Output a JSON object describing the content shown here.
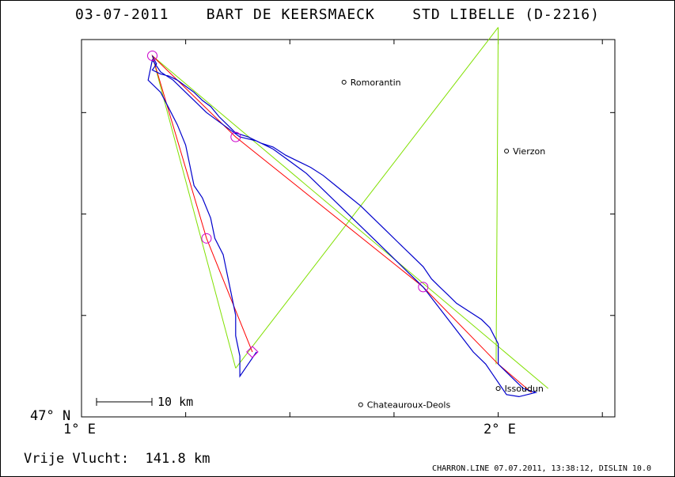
{
  "header": {
    "date": "03-07-2011",
    "pilot": "BART DE KEERSMAECK",
    "glider": "STD LIBELLE (D-2216)"
  },
  "axes": {
    "y_label": "47° N",
    "x_ticks": [
      {
        "lon": 1.0,
        "label": "1° E"
      },
      {
        "lon": 2.0,
        "label": "2° E"
      }
    ],
    "lon_range": [
      1.0,
      2.28
    ],
    "lat_range": [
      47.0,
      47.93
    ]
  },
  "places": [
    {
      "name": "Romorantin",
      "lon": 1.63,
      "lat": 47.825
    },
    {
      "name": "Vierzon",
      "lon": 2.02,
      "lat": 47.655
    },
    {
      "name": "Issoudun",
      "lon": 2.0,
      "lat": 47.07
    },
    {
      "name": "Chateauroux-Deols",
      "lon": 1.67,
      "lat": 47.03
    }
  ],
  "scale_bar": {
    "label": "10 km"
  },
  "footer": {
    "distance_label": "Vrije Vlucht:",
    "distance_value": "141.8 km",
    "credits": "CHARRON.LINE 07.07.2011, 13:38:12, DISLIN 10.0"
  },
  "colors": {
    "track": "#0000cc",
    "task_line": "#ff0000",
    "sector_line": "#80e000",
    "turnpoint": "#cc00cc"
  },
  "turnpoints": [
    {
      "lon": 1.17,
      "lat": 47.89
    },
    {
      "lon": 1.37,
      "lat": 47.69
    },
    {
      "lon": 1.82,
      "lat": 47.32
    },
    {
      "lon": 1.3,
      "lat": 47.44
    },
    {
      "lon": 1.41,
      "lat": 47.16
    }
  ],
  "task_route": [
    {
      "lon": 1.17,
      "lat": 47.89
    },
    {
      "lon": 1.37,
      "lat": 47.69
    },
    {
      "lon": 1.82,
      "lat": 47.32
    },
    {
      "lon": 2.0,
      "lat": 47.13
    },
    {
      "lon": 2.08,
      "lat": 47.06
    },
    {
      "lon": 2.0,
      "lat": 47.13
    },
    {
      "lon": 1.82,
      "lat": 47.32
    },
    {
      "lon": 1.37,
      "lat": 47.69
    },
    {
      "lon": 1.17,
      "lat": 47.89
    },
    {
      "lon": 1.3,
      "lat": 47.44
    },
    {
      "lon": 1.41,
      "lat": 47.16
    }
  ],
  "sector_lines": [
    [
      {
        "lon": 1.17,
        "lat": 47.89
      },
      {
        "lon": 2.12,
        "lat": 47.07
      }
    ],
    [
      {
        "lon": 1.17,
        "lat": 47.89
      },
      {
        "lon": 1.37,
        "lat": 47.12
      }
    ],
    [
      {
        "lon": 1.37,
        "lat": 47.12
      },
      {
        "lon": 2.0,
        "lat": 47.96
      }
    ],
    [
      {
        "lon": 2.0,
        "lat": 47.96
      },
      {
        "lon": 1.995,
        "lat": 47.13
      }
    ]
  ],
  "track": [
    {
      "lon": 1.17,
      "lat": 47.89
    },
    {
      "lon": 1.18,
      "lat": 47.87
    },
    {
      "lon": 1.17,
      "lat": 47.855
    },
    {
      "lon": 1.19,
      "lat": 47.845
    },
    {
      "lon": 1.21,
      "lat": 47.84
    },
    {
      "lon": 1.23,
      "lat": 47.83
    },
    {
      "lon": 1.25,
      "lat": 47.815
    },
    {
      "lon": 1.27,
      "lat": 47.8
    },
    {
      "lon": 1.29,
      "lat": 47.78
    },
    {
      "lon": 1.31,
      "lat": 47.765
    },
    {
      "lon": 1.33,
      "lat": 47.74
    },
    {
      "lon": 1.35,
      "lat": 47.72
    },
    {
      "lon": 1.37,
      "lat": 47.7
    },
    {
      "lon": 1.4,
      "lat": 47.69
    },
    {
      "lon": 1.43,
      "lat": 47.675
    },
    {
      "lon": 1.46,
      "lat": 47.665
    },
    {
      "lon": 1.49,
      "lat": 47.645
    },
    {
      "lon": 1.52,
      "lat": 47.63
    },
    {
      "lon": 1.55,
      "lat": 47.615
    },
    {
      "lon": 1.58,
      "lat": 47.595
    },
    {
      "lon": 1.61,
      "lat": 47.57
    },
    {
      "lon": 1.64,
      "lat": 47.545
    },
    {
      "lon": 1.67,
      "lat": 47.52
    },
    {
      "lon": 1.7,
      "lat": 47.49
    },
    {
      "lon": 1.73,
      "lat": 47.46
    },
    {
      "lon": 1.76,
      "lat": 47.43
    },
    {
      "lon": 1.79,
      "lat": 47.4
    },
    {
      "lon": 1.82,
      "lat": 47.37
    },
    {
      "lon": 1.84,
      "lat": 47.34
    },
    {
      "lon": 1.86,
      "lat": 47.32
    },
    {
      "lon": 1.88,
      "lat": 47.3
    },
    {
      "lon": 1.9,
      "lat": 47.28
    },
    {
      "lon": 1.93,
      "lat": 47.26
    },
    {
      "lon": 1.96,
      "lat": 47.24
    },
    {
      "lon": 1.98,
      "lat": 47.22
    },
    {
      "lon": 2.0,
      "lat": 47.18
    },
    {
      "lon": 2.0,
      "lat": 47.13
    },
    {
      "lon": 2.03,
      "lat": 47.1
    },
    {
      "lon": 2.06,
      "lat": 47.07
    },
    {
      "lon": 2.09,
      "lat": 47.06
    },
    {
      "lon": 2.05,
      "lat": 47.05
    },
    {
      "lon": 2.02,
      "lat": 47.055
    },
    {
      "lon": 2.01,
      "lat": 47.07
    },
    {
      "lon": 1.99,
      "lat": 47.1
    },
    {
      "lon": 1.97,
      "lat": 47.13
    },
    {
      "lon": 1.94,
      "lat": 47.16
    },
    {
      "lon": 1.91,
      "lat": 47.2
    },
    {
      "lon": 1.88,
      "lat": 47.24
    },
    {
      "lon": 1.85,
      "lat": 47.28
    },
    {
      "lon": 1.82,
      "lat": 47.32
    },
    {
      "lon": 1.78,
      "lat": 47.36
    },
    {
      "lon": 1.74,
      "lat": 47.4
    },
    {
      "lon": 1.7,
      "lat": 47.44
    },
    {
      "lon": 1.66,
      "lat": 47.48
    },
    {
      "lon": 1.62,
      "lat": 47.52
    },
    {
      "lon": 1.58,
      "lat": 47.56
    },
    {
      "lon": 1.54,
      "lat": 47.6
    },
    {
      "lon": 1.5,
      "lat": 47.63
    },
    {
      "lon": 1.46,
      "lat": 47.66
    },
    {
      "lon": 1.42,
      "lat": 47.68
    },
    {
      "lon": 1.38,
      "lat": 47.69
    },
    {
      "lon": 1.34,
      "lat": 47.72
    },
    {
      "lon": 1.3,
      "lat": 47.75
    },
    {
      "lon": 1.26,
      "lat": 47.79
    },
    {
      "lon": 1.22,
      "lat": 47.83
    },
    {
      "lon": 1.19,
      "lat": 47.85
    },
    {
      "lon": 1.17,
      "lat": 47.88
    },
    {
      "lon": 1.16,
      "lat": 47.83
    },
    {
      "lon": 1.19,
      "lat": 47.8
    },
    {
      "lon": 1.21,
      "lat": 47.76
    },
    {
      "lon": 1.23,
      "lat": 47.72
    },
    {
      "lon": 1.25,
      "lat": 47.67
    },
    {
      "lon": 1.26,
      "lat": 47.62
    },
    {
      "lon": 1.27,
      "lat": 47.57
    },
    {
      "lon": 1.29,
      "lat": 47.54
    },
    {
      "lon": 1.31,
      "lat": 47.49
    },
    {
      "lon": 1.32,
      "lat": 47.44
    },
    {
      "lon": 1.34,
      "lat": 47.4
    },
    {
      "lon": 1.35,
      "lat": 47.35
    },
    {
      "lon": 1.36,
      "lat": 47.3
    },
    {
      "lon": 1.37,
      "lat": 47.25
    },
    {
      "lon": 1.37,
      "lat": 47.2
    },
    {
      "lon": 1.38,
      "lat": 47.15
    },
    {
      "lon": 1.38,
      "lat": 47.1
    },
    {
      "lon": 1.4,
      "lat": 47.13
    },
    {
      "lon": 1.42,
      "lat": 47.16
    }
  ]
}
